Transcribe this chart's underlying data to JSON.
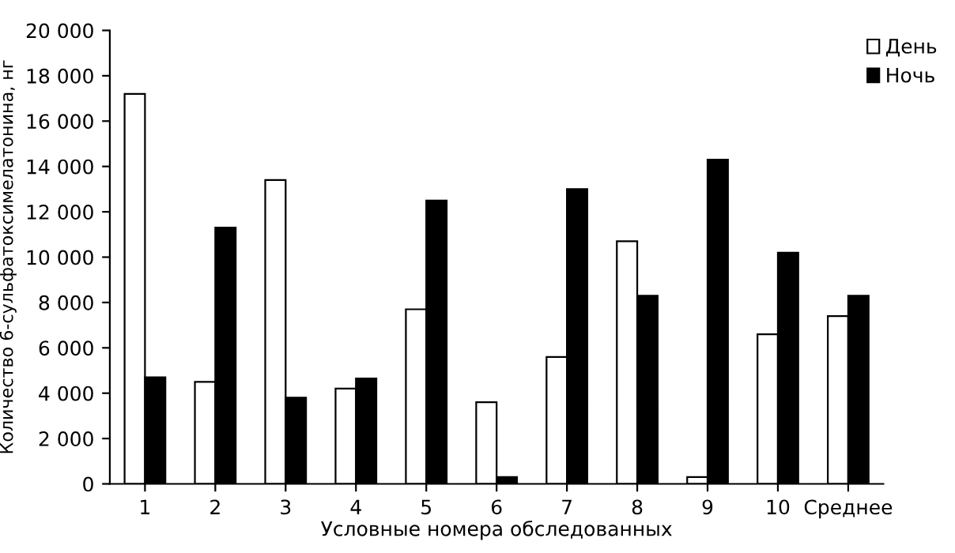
{
  "chart_data": {
    "type": "bar",
    "xlabel": "Условные номера обследованных",
    "ylabel": "Количество 6-сульфатоксимелатонина, нг",
    "categories": [
      "1",
      "2",
      "3",
      "4",
      "5",
      "6",
      "7",
      "8",
      "9",
      "10",
      "Среднее"
    ],
    "series": [
      {
        "name": "День",
        "color": "#ffffff",
        "values": [
          17200,
          4500,
          13400,
          4200,
          7700,
          3600,
          5600,
          10700,
          300,
          6600,
          7400
        ]
      },
      {
        "name": "Ночь",
        "color": "#000000",
        "values": [
          4700,
          11300,
          3800,
          4650,
          12500,
          300,
          13000,
          8300,
          14300,
          10200,
          8300
        ]
      }
    ],
    "ylim": [
      0,
      20000
    ],
    "yticks": [
      0,
      {
        "value": 2000,
        "label": "2 000"
      },
      {
        "value": 4000,
        "label": "4 000"
      },
      {
        "value": 6000,
        "label": "6 000"
      },
      {
        "value": 8000,
        "label": "8 000"
      },
      {
        "value": 10000,
        "label": "10 000"
      },
      {
        "value": 12000,
        "label": "12 000"
      },
      {
        "value": 14000,
        "label": "14 000"
      },
      {
        "value": 16000,
        "label": "16 000"
      },
      {
        "value": 18000,
        "label": "18 000"
      },
      {
        "value": 20000,
        "label": "20 000"
      }
    ],
    "grid": false,
    "legend": "top right"
  }
}
